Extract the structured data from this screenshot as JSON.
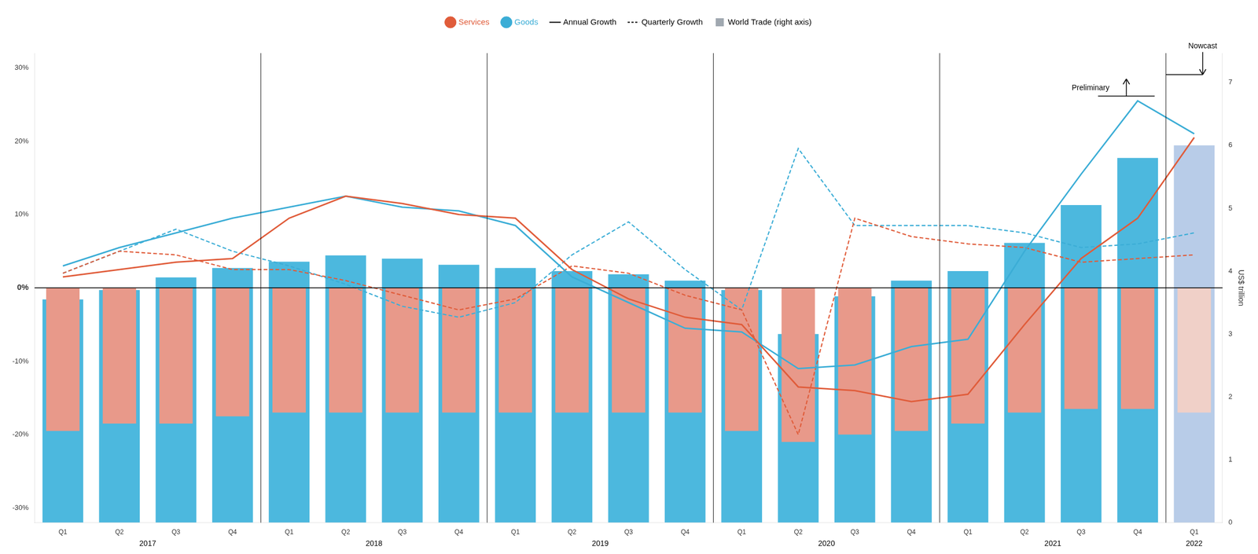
{
  "chart_data": {
    "type": "bar",
    "categories": [
      "Q1",
      "Q2",
      "Q3",
      "Q4",
      "Q1",
      "Q2",
      "Q3",
      "Q4",
      "Q1",
      "Q2",
      "Q3",
      "Q4",
      "Q1",
      "Q2",
      "Q3",
      "Q4",
      "Q1",
      "Q2",
      "Q3",
      "Q4",
      "Q1"
    ],
    "groups": [
      {
        "label": "2017",
        "size": 4
      },
      {
        "label": "2018",
        "size": 4
      },
      {
        "label": "2019",
        "size": 4
      },
      {
        "label": "2020",
        "size": 4
      },
      {
        "label": "2021",
        "size": 4
      },
      {
        "label": "2022",
        "size": 1
      }
    ],
    "series": [
      {
        "name": "World Trade (right axis)",
        "type": "bar",
        "axis": "y2",
        "color": "#a0a8b0",
        "colors": [
          "#4cb8de",
          "#4cb8de",
          "#4cb8de",
          "#4cb8de",
          "#4cb8de",
          "#4cb8de",
          "#4cb8de",
          "#4cb8de",
          "#4cb8de",
          "#4cb8de",
          "#4cb8de",
          "#4cb8de",
          "#4cb8de",
          "#4cb8de",
          "#4cb8de",
          "#4cb8de",
          "#4cb8de",
          "#4cb8de",
          "#4cb8de",
          "#4cb8de",
          "#b8cce8"
        ],
        "values": [
          3.55,
          3.7,
          3.9,
          4.05,
          4.15,
          4.25,
          4.2,
          4.1,
          4.05,
          4.0,
          3.95,
          3.85,
          3.7,
          3.0,
          3.6,
          3.85,
          4.0,
          4.45,
          5.05,
          5.8,
          6.0
        ]
      },
      {
        "type": "bar",
        "colors": [
          "#e8998a",
          "#e8998a",
          "#e8998a",
          "#e8998a",
          "#e8998a",
          "#e8998a",
          "#e8998a",
          "#e8998a",
          "#e8998a",
          "#e8998a",
          "#e8998a",
          "#e8998a",
          "#e8998a",
          "#e8998a",
          "#e8998a",
          "#e8998a",
          "#e8998a",
          "#e8998a",
          "#e8998a",
          "#e8998a",
          "#f0d0c8"
        ],
        "values": [
          -19.5,
          -18.5,
          -18.5,
          -17.5,
          -17.0,
          -17.0,
          -17.0,
          -17.0,
          -17.0,
          -17.0,
          -17.0,
          -17.0,
          -19.5,
          -21.0,
          -20.0,
          -19.5,
          -18.5,
          -17.0,
          -16.5,
          -16.5,
          -17.0
        ]
      },
      {
        "name": "Services",
        "type": "line",
        "color": "#e05c3a",
        "line_style": "solid",
        "values": [
          1.5,
          2.5,
          3.5,
          4.0,
          9.5,
          12.5,
          11.5,
          10.0,
          9.5,
          2.5,
          -1.5,
          -4.0,
          -5.0,
          -13.5,
          -14.0,
          -15.5,
          -14.5,
          -5.0,
          4.0,
          9.5,
          20.5
        ]
      },
      {
        "name": "Goods",
        "type": "line",
        "color": "#3badd6",
        "line_style": "solid",
        "values": [
          3.0,
          5.5,
          7.5,
          9.5,
          11.0,
          12.5,
          11.0,
          10.5,
          8.5,
          1.5,
          -2.0,
          -5.5,
          -6.0,
          -11.0,
          -10.5,
          -8.0,
          -7.0,
          5.0,
          15.5,
          25.5,
          21.0
        ]
      },
      {
        "type": "line",
        "color": "#e05c3a",
        "line_style": "dashed",
        "values": [
          2.0,
          5.0,
          4.5,
          2.5,
          2.5,
          1.0,
          -1.0,
          -3.0,
          -1.5,
          3.0,
          2.0,
          -1.0,
          -3.0,
          -20.0,
          9.5,
          7.0,
          6.0,
          5.5,
          3.5,
          4.0,
          4.5
        ]
      },
      {
        "type": "line",
        "color": "#3badd6",
        "line_style": "dashed",
        "values": [
          2.0,
          5.0,
          8.0,
          5.0,
          3.0,
          0.5,
          -2.5,
          -4.0,
          -2.0,
          4.5,
          9.0,
          2.5,
          -3.0,
          19.0,
          8.5,
          8.5,
          8.5,
          7.5,
          5.5,
          6.0,
          7.5
        ]
      }
    ],
    "annotations": [
      {
        "text": "Annual Growth",
        "line_style": "solid"
      },
      {
        "text": "Quarterly Growth",
        "line_style": "dashed"
      },
      {
        "text": "Nowcast",
        "x": 20
      },
      {
        "text": "Preliminary",
        "x": 19
      }
    ],
    "ylim": [
      -32,
      32
    ],
    "yticks": [
      {
        "value": -30,
        "label": "-30%"
      },
      {
        "value": -20,
        "label": "-20%"
      },
      {
        "value": -10,
        "label": "-10%"
      },
      {
        "value": 0,
        "label": "0%"
      },
      {
        "value": 10,
        "label": "10%"
      },
      {
        "value": 20,
        "label": "20%"
      },
      {
        "value": 30,
        "label": "30%"
      }
    ],
    "y2label": "US$ trillion",
    "y2lim": [
      0,
      7.467
    ],
    "y2ticks": [
      0,
      1,
      2,
      3,
      4,
      5,
      6,
      7
    ],
    "legend": "top",
    "grid": false
  }
}
